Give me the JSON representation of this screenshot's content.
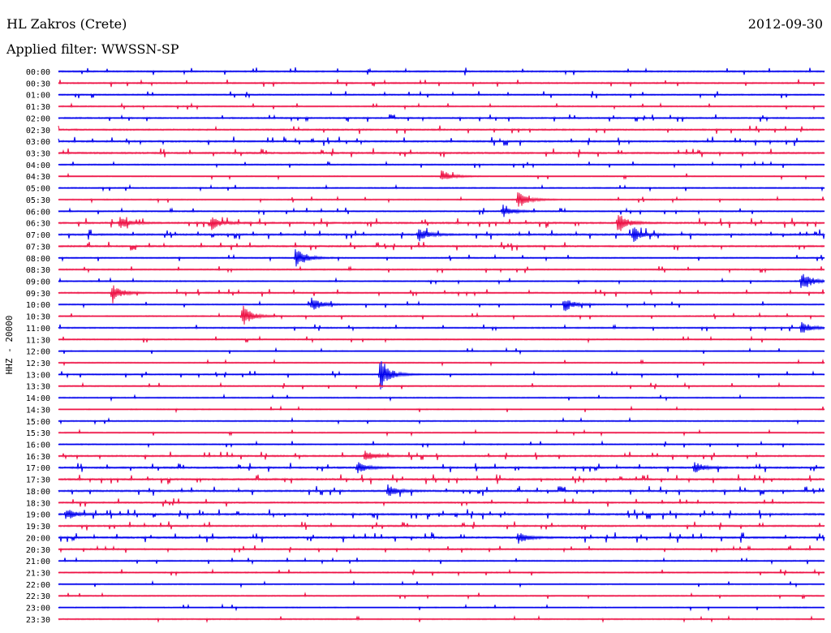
{
  "header": {
    "station": "HL Zakros (Crete)",
    "date": "2012-09-30",
    "filter": "Applied filter: WWSSN-SP"
  },
  "chart_data": {
    "type": "line",
    "title": "HL Zakros (Crete)",
    "subtitle": "Applied filter: WWSSN-SP",
    "ylabel": "HHZ - 20000",
    "xlabel": "",
    "date": "2012-09-30",
    "colors": [
      "#0000ee",
      "#ee1144"
    ],
    "row_labels": [
      "00:00",
      "00:30",
      "01:00",
      "01:30",
      "02:00",
      "02:30",
      "03:00",
      "03:30",
      "04:00",
      "04:30",
      "05:00",
      "05:30",
      "06:00",
      "06:30",
      "07:00",
      "07:30",
      "08:00",
      "08:30",
      "09:00",
      "09:30",
      "10:00",
      "10:30",
      "11:00",
      "11:30",
      "12:00",
      "12:30",
      "13:00",
      "13:30",
      "14:00",
      "14:30",
      "15:00",
      "15:30",
      "16:00",
      "16:30",
      "17:00",
      "17:30",
      "18:00",
      "18:30",
      "19:00",
      "19:30",
      "20:00",
      "20:30",
      "21:00",
      "21:30",
      "22:00",
      "22:30",
      "23:00",
      "23:30"
    ],
    "activity": [
      0.5,
      0.45,
      0.4,
      0.3,
      0.45,
      0.55,
      0.65,
      0.7,
      0.35,
      0.2,
      0.25,
      0.25,
      0.4,
      0.75,
      0.8,
      0.6,
      0.3,
      0.35,
      0.3,
      0.45,
      0.3,
      0.3,
      0.35,
      0.3,
      0.2,
      0.2,
      0.35,
      0.3,
      0.2,
      0.2,
      0.2,
      0.2,
      0.3,
      0.55,
      0.7,
      0.75,
      0.75,
      0.55,
      0.8,
      0.6,
      0.8,
      0.45,
      0.3,
      0.3,
      0.2,
      0.3,
      0.2,
      0.2
    ],
    "events": [
      {
        "row": 9,
        "pos": 0.5,
        "amp": 8
      },
      {
        "row": 11,
        "pos": 0.6,
        "amp": 12
      },
      {
        "row": 12,
        "pos": 0.58,
        "amp": 8
      },
      {
        "row": 13,
        "pos": 0.08,
        "amp": 8
      },
      {
        "row": 13,
        "pos": 0.2,
        "amp": 9
      },
      {
        "row": 13,
        "pos": 0.73,
        "amp": 14
      },
      {
        "row": 14,
        "pos": 0.47,
        "amp": 9
      },
      {
        "row": 14,
        "pos": 0.75,
        "amp": 10
      },
      {
        "row": 16,
        "pos": 0.31,
        "amp": 15
      },
      {
        "row": 18,
        "pos": 0.97,
        "amp": 14
      },
      {
        "row": 19,
        "pos": 0.07,
        "amp": 12
      },
      {
        "row": 20,
        "pos": 0.33,
        "amp": 9
      },
      {
        "row": 20,
        "pos": 0.66,
        "amp": 9
      },
      {
        "row": 21,
        "pos": 0.24,
        "amp": 14
      },
      {
        "row": 22,
        "pos": 0.97,
        "amp": 8
      },
      {
        "row": 26,
        "pos": 0.42,
        "amp": 22
      },
      {
        "row": 33,
        "pos": 0.4,
        "amp": 8
      },
      {
        "row": 34,
        "pos": 0.39,
        "amp": 8
      },
      {
        "row": 34,
        "pos": 0.83,
        "amp": 8
      },
      {
        "row": 36,
        "pos": 0.43,
        "amp": 8
      },
      {
        "row": 38,
        "pos": 0.01,
        "amp": 8
      },
      {
        "row": 40,
        "pos": 0.6,
        "amp": 8
      }
    ]
  }
}
